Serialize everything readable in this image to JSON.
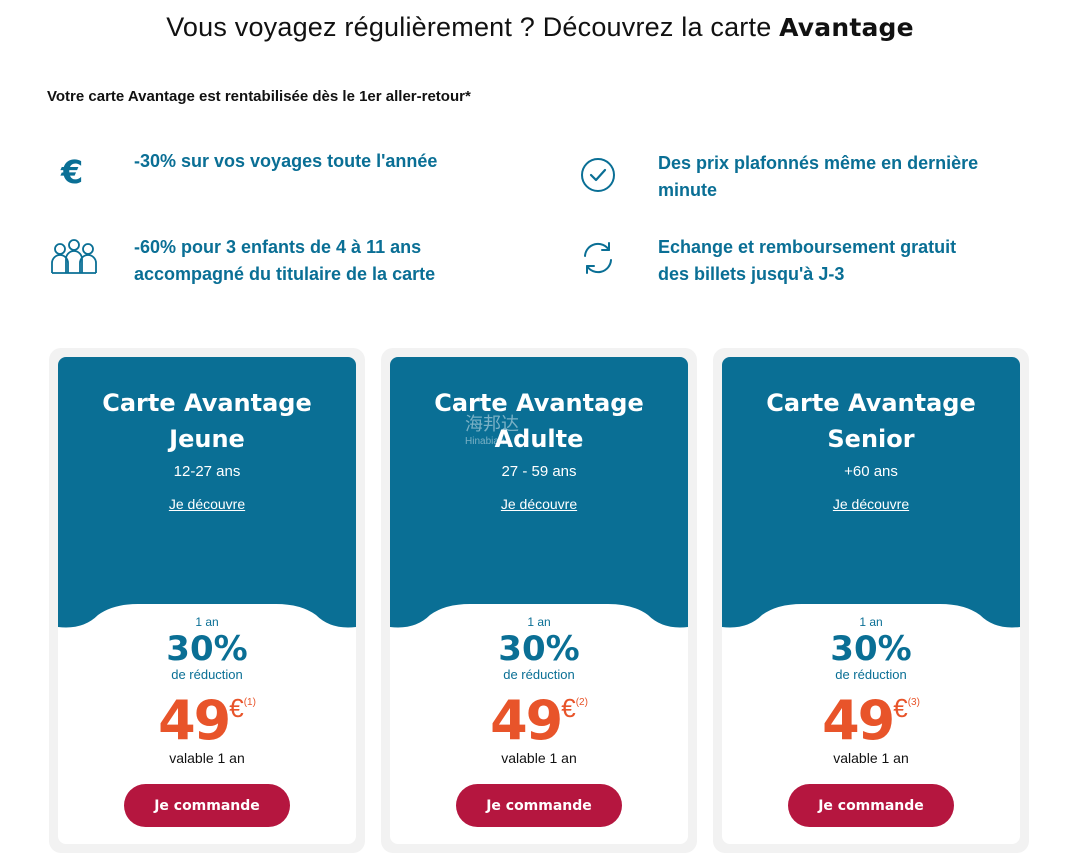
{
  "header": {
    "title_prefix": "Vous voyagez régulièrement ? Découvrez la carte ",
    "title_bold": "Avantage",
    "subtitle": "Votre carte Avantage est rentabilisée dès le 1er aller-retour*"
  },
  "benefits": [
    {
      "icon": "euro-icon",
      "line1": "-30% sur vos voyages toute l'année",
      "line2": ""
    },
    {
      "icon": "clock-check-icon",
      "line1": "Des prix plafonnés même en dernière",
      "line2": "minute"
    },
    {
      "icon": "group-people-icon",
      "line1": "-60% pour 3 enfants de 4 à 11 ans",
      "line2": "accompagné du titulaire de la carte"
    },
    {
      "icon": "exchange-arrows-icon",
      "line1": "Echange et remboursement gratuit",
      "line2": "des billets jusqu'à J-3"
    }
  ],
  "cards": [
    {
      "title1": "Carte Avantage",
      "title2": "Jeune",
      "age": "12-27 ans",
      "link": "Je découvre",
      "duration": "1 an",
      "percent": "30%",
      "reduction": "de réduction",
      "price": "49",
      "currency": "€",
      "note": "(1)",
      "validity": "valable 1 an",
      "button": "Je commande"
    },
    {
      "title1": "Carte Avantage",
      "title2": "Adulte",
      "age": "27 - 59 ans",
      "link": "Je découvre",
      "duration": "1 an",
      "percent": "30%",
      "reduction": "de réduction",
      "price": "49",
      "currency": "€",
      "note": "(2)",
      "validity": "valable 1 an",
      "button": "Je commande"
    },
    {
      "title1": "Carte Avantage",
      "title2": "Senior",
      "age": "+60 ans",
      "link": "Je découvre",
      "duration": "1 an",
      "percent": "30%",
      "reduction": "de réduction",
      "price": "49",
      "currency": "€",
      "note": "(3)",
      "validity": "valable 1 an",
      "button": "Je commande"
    }
  ],
  "watermark": {
    "line1": "海邦达",
    "line2": "Hinabian"
  },
  "colors": {
    "brand_blue": "#0a6f95",
    "price_orange": "#e8542a",
    "button_red": "#b5163f",
    "card_bg": "#f2f2f2"
  }
}
